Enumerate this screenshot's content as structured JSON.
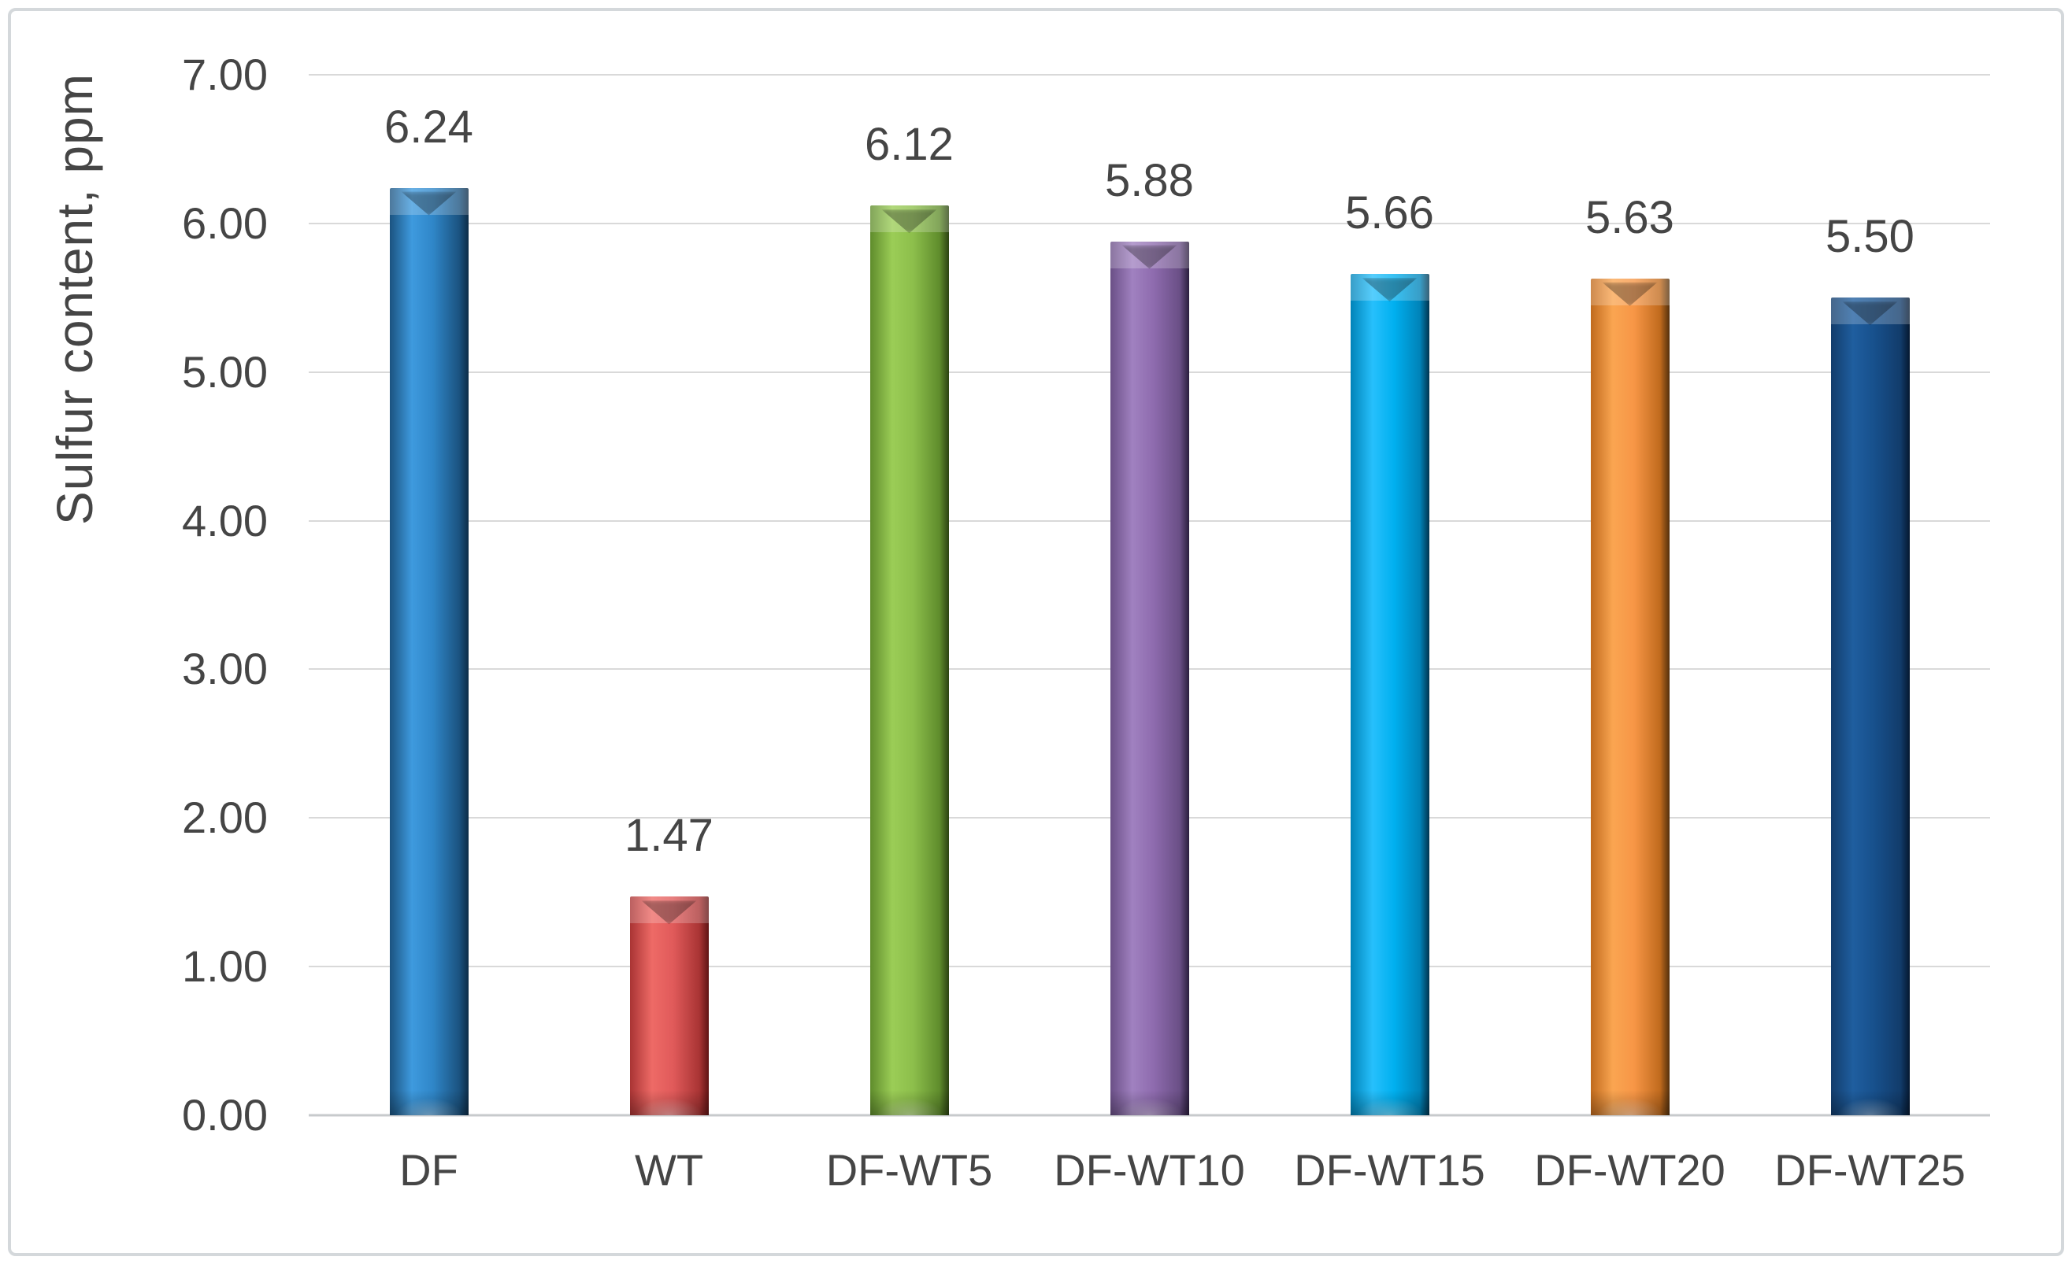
{
  "figure": {
    "background_color": "#ffffff",
    "frame_border_color": "#d4d8db",
    "text_color": "#454545",
    "gridline_color": "#d9d9d9",
    "baseline_color": "#c7cacc"
  },
  "chart_data": {
    "type": "bar",
    "title": "",
    "xlabel": "",
    "ylabel": "Sulfur content, ppm",
    "categories": [
      "DF",
      "WT",
      "DF-WT5",
      "DF-WT10",
      "DF-WT15",
      "DF-WT20",
      "DF-WT25"
    ],
    "values": [
      6.24,
      1.47,
      6.12,
      5.88,
      5.66,
      5.63,
      5.5
    ],
    "data_labels": [
      "6.24",
      "1.47",
      "6.12",
      "5.88",
      "5.66",
      "5.63",
      "5.50"
    ],
    "ylim": [
      0,
      7
    ],
    "yticks": [
      "0.00",
      "1.00",
      "2.00",
      "3.00",
      "4.00",
      "5.00",
      "6.00",
      "7.00"
    ],
    "ytick_values": [
      0,
      1,
      2,
      3,
      4,
      5,
      6,
      7
    ],
    "grid": "horizontal",
    "legend_position": "none",
    "bar_style": "3d-cylinder-bevel",
    "series_colors": [
      {
        "category": "DF",
        "main": "#2f86c8",
        "light": "#3e9ade",
        "edge": "#1b5380",
        "dark": "#0d2c47"
      },
      {
        "category": "WT",
        "main": "#e05a5a",
        "light": "#ee6a66",
        "edge": "#a93434",
        "dark": "#5f1414"
      },
      {
        "category": "DF-WT5",
        "main": "#8cbe4b",
        "light": "#9bcd56",
        "edge": "#5f8c2c",
        "dark": "#2c4312"
      },
      {
        "category": "DF-WT10",
        "main": "#8e6bae",
        "light": "#a081c0",
        "edge": "#6a4f86",
        "dark": "#2a1d3d"
      },
      {
        "category": "DF-WT15",
        "main": "#00b0f0",
        "light": "#27c0fc",
        "edge": "#0083b8",
        "dark": "#00344f"
      },
      {
        "category": "DF-WT20",
        "main": "#f79646",
        "light": "#faa551",
        "edge": "#c06a1d",
        "dark": "#53300c"
      },
      {
        "category": "DF-WT25",
        "main": "#17508c",
        "light": "#1f5e9f",
        "edge": "#123c6b",
        "dark": "#051830"
      }
    ]
  }
}
